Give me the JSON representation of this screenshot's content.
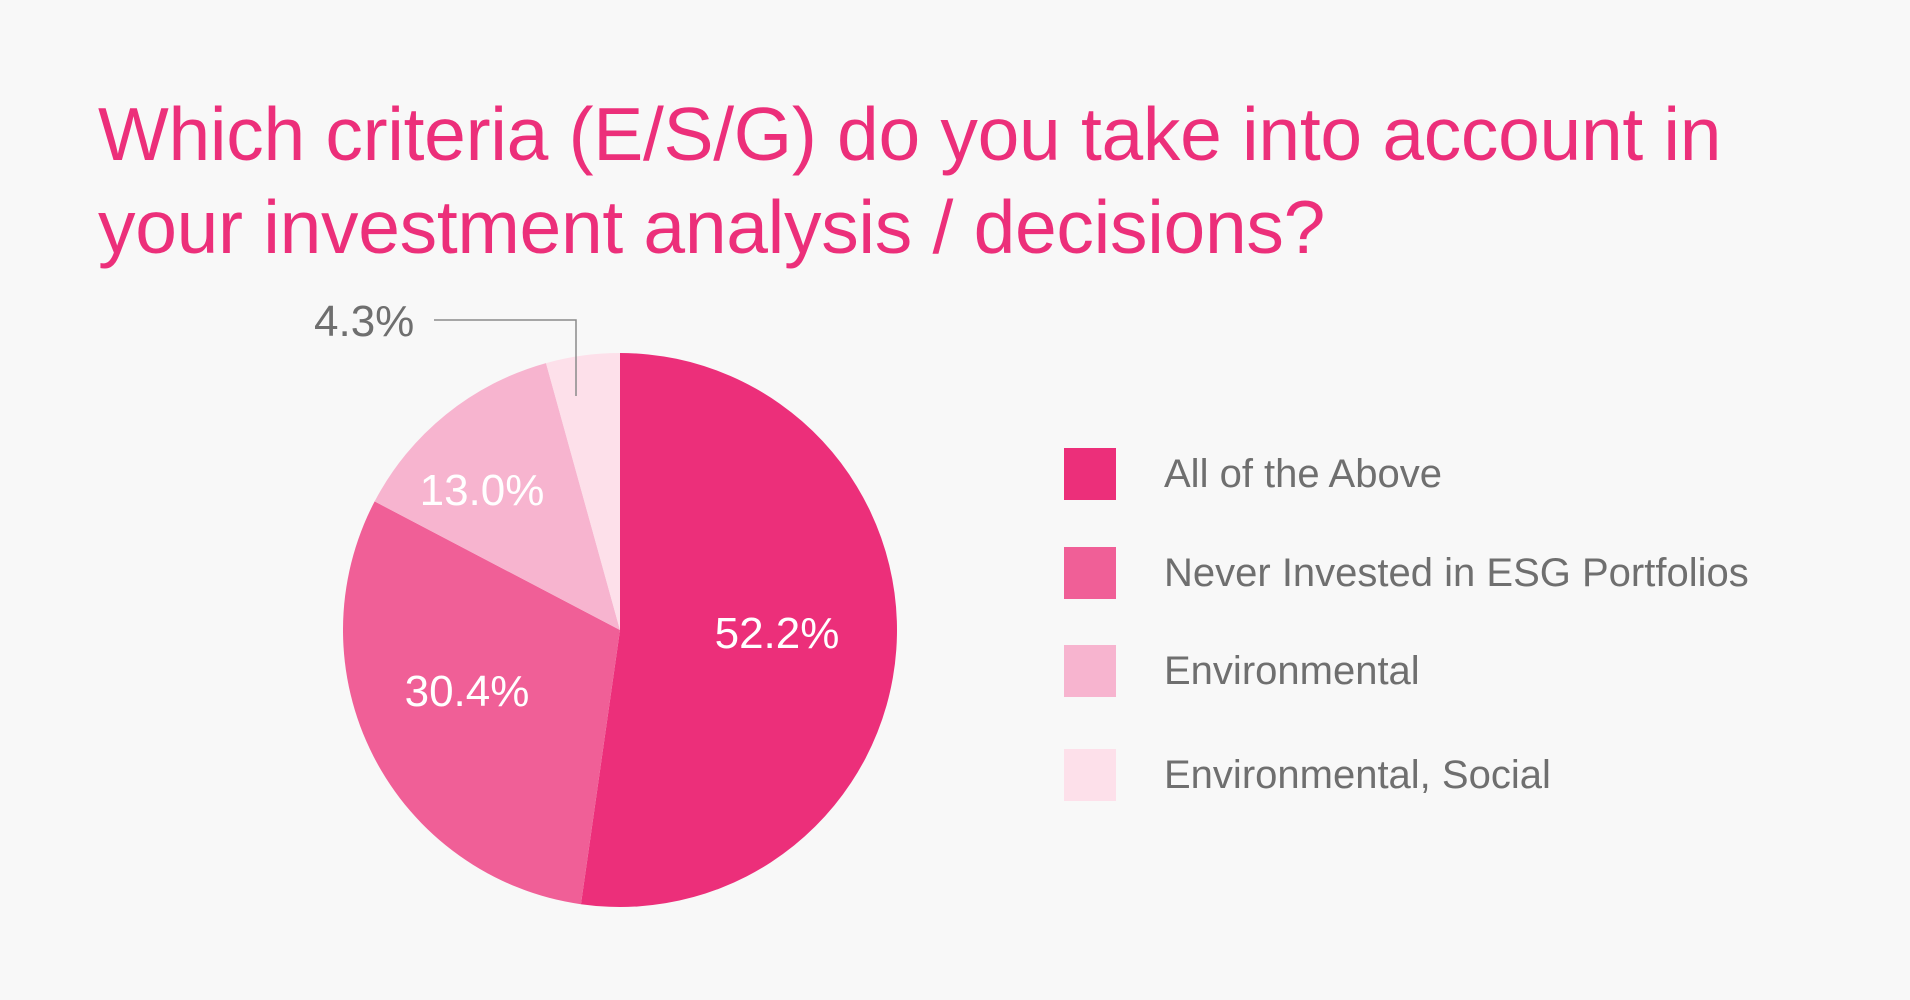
{
  "chart_data": {
    "type": "pie",
    "title_lines": [
      "Which criteria (E/S/G) do you take into account in",
      "your investment analysis / decisions?"
    ],
    "categories": [
      "All of the Above",
      "Never Invested in ESG Portfolios",
      "Environmental",
      "Environmental, Social"
    ],
    "values": [
      52.2,
      30.4,
      13.0,
      4.3
    ],
    "labels": [
      "52.2%",
      "30.4%",
      "13.0%",
      "4.3%"
    ],
    "colors": [
      "#ec2f7a",
      "#f05f97",
      "#f7b4cf",
      "#fde0ea"
    ],
    "legend_position": "right"
  }
}
